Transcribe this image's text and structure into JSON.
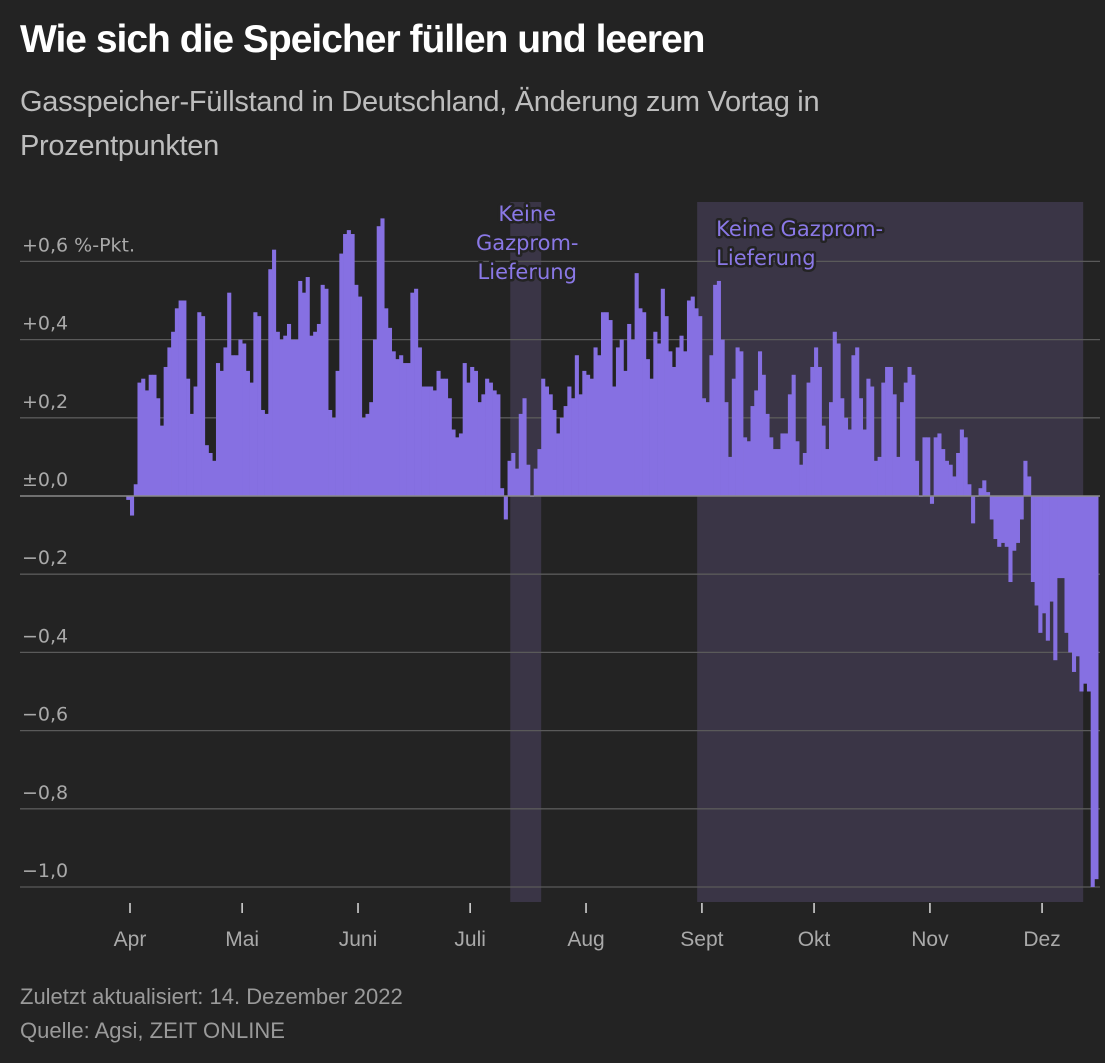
{
  "header": {
    "title": "Wie sich die Speicher füllen und leeren",
    "subtitle": "Gasspeicher-Füllstand in Deutschland, Änderung zum Vortag in Prozentpunkten"
  },
  "footer": {
    "updated": "Zuletzt aktualisiert: 14. Dezember 2022",
    "source": "Quelle: Agsi, ZEIT ONLINE"
  },
  "colors": {
    "background": "#232323",
    "bar": "#8670e2",
    "shade": "#3a3546",
    "grid": "#5a5a5a",
    "annotation": "#8a78e6"
  },
  "chart_data": {
    "type": "bar",
    "title": "Wie sich die Speicher füllen und leeren",
    "subtitle": "Gasspeicher-Füllstand in Deutschland, Änderung zum Vortag in Prozentpunkten",
    "xlabel": "",
    "ylabel": "%-Pkt.",
    "unit_label": "%-Pkt.",
    "ylim": [
      -1.03,
      0.75
    ],
    "grid": true,
    "y_ticks": [
      {
        "value": 0.6,
        "label": "+0,6"
      },
      {
        "value": 0.4,
        "label": "+0,4"
      },
      {
        "value": 0.2,
        "label": "+0,2"
      },
      {
        "value": 0.0,
        "label": "±0,0"
      },
      {
        "value": -0.2,
        "label": "−0,2"
      },
      {
        "value": -0.4,
        "label": "−0,4"
      },
      {
        "value": -0.6,
        "label": "−0,6"
      },
      {
        "value": -0.8,
        "label": "−0,8"
      },
      {
        "value": -1.0,
        "label": "−1,0"
      }
    ],
    "x_ticks": [
      {
        "day": 0,
        "label": "Apr"
      },
      {
        "day": 30,
        "label": "Mai"
      },
      {
        "day": 61,
        "label": "Juni"
      },
      {
        "day": 91,
        "label": "Juli"
      },
      {
        "day": 122,
        "label": "Aug"
      },
      {
        "day": 153,
        "label": "Sept"
      },
      {
        "day": 183,
        "label": "Okt"
      },
      {
        "day": 214,
        "label": "Nov"
      },
      {
        "day": 244,
        "label": "Dez"
      }
    ],
    "x_start_day": -1,
    "x_unit": "days since 1 April 2022",
    "annotations": [
      {
        "label_lines": [
          "Keine",
          "Gazprom-",
          "Lieferung"
        ],
        "start_day": 102,
        "end_day": 110,
        "align": "center"
      },
      {
        "label_lines": [
          "Keine Gazprom-",
          "Lieferung"
        ],
        "start_day": 152,
        "end_day": 255,
        "align": "left"
      }
    ],
    "values": [
      -0.01,
      -0.05,
      0.03,
      0.29,
      0.3,
      0.27,
      0.31,
      0.31,
      0.25,
      0.18,
      0.33,
      0.38,
      0.42,
      0.48,
      0.5,
      0.5,
      0.3,
      0.21,
      0.28,
      0.47,
      0.46,
      0.13,
      0.11,
      0.09,
      0.34,
      0.32,
      0.38,
      0.52,
      0.36,
      0.36,
      0.4,
      0.39,
      0.32,
      0.29,
      0.47,
      0.46,
      0.22,
      0.21,
      0.58,
      0.63,
      0.42,
      0.4,
      0.41,
      0.44,
      0.4,
      0.4,
      0.55,
      0.52,
      0.56,
      0.41,
      0.42,
      0.44,
      0.54,
      0.53,
      0.22,
      0.2,
      0.32,
      0.62,
      0.67,
      0.68,
      0.67,
      0.54,
      0.51,
      0.2,
      0.21,
      0.24,
      0.4,
      0.69,
      0.71,
      0.48,
      0.43,
      0.37,
      0.35,
      0.36,
      0.34,
      0.34,
      0.52,
      0.53,
      0.38,
      0.28,
      0.28,
      0.28,
      0.27,
      0.32,
      0.3,
      0.3,
      0.25,
      0.17,
      0.15,
      0.16,
      0.34,
      0.29,
      0.33,
      0.32,
      0.24,
      0.26,
      0.3,
      0.29,
      0.27,
      0.26,
      0.02,
      -0.06,
      0.09,
      0.11,
      0.07,
      0.21,
      0.25,
      0.08,
      0.0,
      0.07,
      0.12,
      0.3,
      0.28,
      0.26,
      0.22,
      0.16,
      0.2,
      0.23,
      0.28,
      0.25,
      0.36,
      0.26,
      0.32,
      0.31,
      0.3,
      0.38,
      0.36,
      0.47,
      0.47,
      0.45,
      0.28,
      0.38,
      0.4,
      0.32,
      0.44,
      0.4,
      0.57,
      0.48,
      0.47,
      0.35,
      0.3,
      0.42,
      0.39,
      0.53,
      0.46,
      0.37,
      0.33,
      0.38,
      0.41,
      0.37,
      0.5,
      0.51,
      0.48,
      0.46,
      0.25,
      0.24,
      0.36,
      0.54,
      0.55,
      0.4,
      0.24,
      0.1,
      0.3,
      0.38,
      0.37,
      0.15,
      0.14,
      0.23,
      0.27,
      0.37,
      0.31,
      0.21,
      0.15,
      0.12,
      0.12,
      0.16,
      0.16,
      0.26,
      0.31,
      0.14,
      0.08,
      0.11,
      0.29,
      0.33,
      0.38,
      0.33,
      0.18,
      0.12,
      0.24,
      0.42,
      0.39,
      0.25,
      0.2,
      0.17,
      0.36,
      0.38,
      0.25,
      0.17,
      0.3,
      0.28,
      0.09,
      0.1,
      0.29,
      0.33,
      0.33,
      0.26,
      0.1,
      0.24,
      0.29,
      0.33,
      0.31,
      0.09,
      0.0,
      0.15,
      0.15,
      -0.02,
      0.15,
      0.16,
      0.12,
      0.09,
      0.08,
      0.05,
      0.11,
      0.17,
      0.15,
      0.03,
      -0.07,
      0.0,
      0.02,
      0.04,
      0.01,
      -0.06,
      -0.11,
      -0.13,
      -0.12,
      -0.13,
      -0.22,
      -0.14,
      -0.12,
      -0.06,
      0.09,
      0.05,
      -0.22,
      -0.28,
      -0.35,
      -0.3,
      -0.37,
      -0.27,
      -0.42,
      -0.21,
      -0.21,
      -0.35,
      -0.4,
      -0.45,
      -0.41,
      -0.5,
      -0.48,
      -0.5,
      -1.0,
      -0.98
    ]
  }
}
